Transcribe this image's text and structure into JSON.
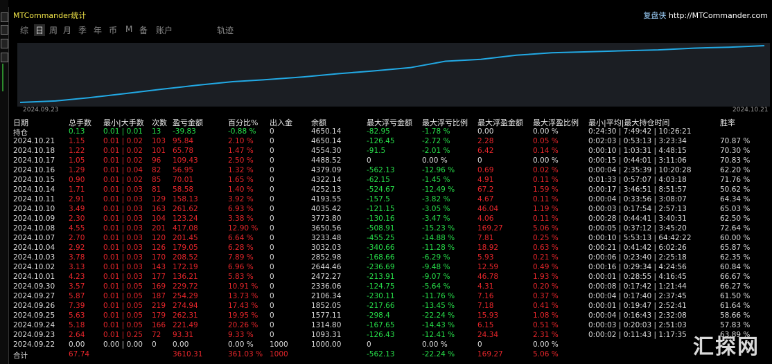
{
  "header": {
    "title": "MTCommander统计",
    "site_label": "复盘侠",
    "site_url": "http://MTCommander.com"
  },
  "tabs": [
    "综",
    "日",
    "周",
    "月",
    "季",
    "年",
    "币",
    "M",
    "备",
    "账户",
    "轨迹"
  ],
  "active_tab": 1,
  "chart": {
    "start_date": "2024.09.23",
    "end_date": "2024.10.21"
  },
  "table": {
    "columns": [
      "日期",
      "总手数",
      "最小|大手数",
      "次数",
      "盈亏金额",
      "百分比%",
      "出入金",
      "余额",
      "最大浮亏金额",
      "最大浮亏比例",
      "最大浮盈金额",
      "最大浮盈比例",
      "最小|平均|最大持仓时间",
      "胜率"
    ],
    "rows": [
      [
        "持仓",
        "0.13",
        "0.01 | 0.01",
        "13",
        "-39.83",
        "-0.88 %",
        "0",
        "4650.14",
        "-82.95",
        "-1.78 %",
        "0.00",
        "0.00 %",
        "0:24:30 | 7:49:42 | 10:26:21",
        null
      ],
      [
        "2024.10.21",
        "1.15",
        "0.01 | 0.02",
        "103",
        "95.84",
        "2.10 %",
        "0",
        "4650.14",
        "-126.45",
        "-2.72 %",
        "2.28",
        "0.05 %",
        "0:02:03 | 0:53:13 | 3:23:34",
        "70.87 %"
      ],
      [
        "2024.10.18",
        "1.22",
        "0.01 | 0.02",
        "101",
        "65.78",
        "1.47 %",
        "0",
        "4554.30",
        "-91.5",
        "-2.01 %",
        "6.42",
        "0.14 %",
        "0:00:10 | 1:03:31 | 4:48:15",
        "70.30 %"
      ],
      [
        "2024.10.17",
        "1.05",
        "0.01 | 0.02",
        "96",
        "109.43",
        "2.50 %",
        "0",
        "4488.52",
        "0",
        "0.00 %",
        "0",
        "0.00 %",
        "0:00:15 | 0:44:01 | 3:11:06",
        "70.83 %"
      ],
      [
        "2024.10.16",
        "1.29",
        "0.01 | 0.04",
        "82",
        "56.95",
        "1.32 %",
        "0",
        "4379.09",
        "-562.13",
        "-12.96 %",
        "0.69",
        "0.02 %",
        "0:00:04 | 2:35:39 | 10:20:28",
        "62.20 %"
      ],
      [
        "2024.10.15",
        "0.90",
        "0.01 | 0.02",
        "85",
        "70.01",
        "1.65 %",
        "0",
        "4322.14",
        "-62.15",
        "-1.45 %",
        "4.91",
        "0.11 %",
        "0:01:33 | 0:57:07 | 4:03:18",
        "71.76 %"
      ],
      [
        "2024.10.14",
        "1.71",
        "0.01 | 0.03",
        "81",
        "58.58",
        "1.40 %",
        "0",
        "4252.13",
        "-524.67",
        "-12.49 %",
        "67.2",
        "1.59 %",
        "0:00:17 | 3:46:51 | 8:51:57",
        "50.62 %"
      ],
      [
        "2024.10.11",
        "2.91",
        "0.01 | 0.03",
        "129",
        "158.13",
        "3.92 %",
        "0",
        "4193.55",
        "-157.5",
        "-3.82 %",
        "4.67",
        "0.11 %",
        "0:00:04 | 0:33:56 | 3:08:07",
        "64.34 %"
      ],
      [
        "2024.10.10",
        "3.49",
        "0.01 | 0.03",
        "163",
        "261.62",
        "6.93 %",
        "0",
        "4035.42",
        "-121.15",
        "-3.05 %",
        "46.04",
        "1.19 %",
        "0:00:03 | 0:17:54 | 2:57:13",
        "65.03 %"
      ],
      [
        "2024.10.09",
        "2.30",
        "0.01 | 0.03",
        "104",
        "123.24",
        "3.38 %",
        "0",
        "3773.80",
        "-130.16",
        "-3.47 %",
        "4.06",
        "0.11 %",
        "0:00:28 | 0:44:41 | 3:40:31",
        "62.50 %"
      ],
      [
        "2024.10.08",
        "4.55",
        "0.01 | 0.03",
        "201",
        "417.08",
        "12.90 %",
        "0",
        "3650.56",
        "-508.91",
        "-15.23 %",
        "169.27",
        "5.06 %",
        "0:00:05 | 0:37:12 | 3:45:20",
        "72.64 %"
      ],
      [
        "2024.10.07",
        "2.70",
        "0.01 | 0.03",
        "120",
        "201.45",
        "6.64 %",
        "0",
        "3233.48",
        "-455.25",
        "-14.88 %",
        "7.81",
        "0.25 %",
        "0:00:10 | 5:53:13 | 64:42:22",
        "60.00 %"
      ],
      [
        "2024.10.04",
        "2.92",
        "0.01 | 0.03",
        "126",
        "179.05",
        "6.28 %",
        "0",
        "3032.03",
        "-340.66",
        "-11.28 %",
        "18.92",
        "0.63 %",
        "0:00:21 | 0:41:42 | 6:02:26",
        "65.87 %"
      ],
      [
        "2024.10.03",
        "3.78",
        "0.01 | 0.03",
        "170",
        "208.52",
        "7.89 %",
        "0",
        "2852.98",
        "-168.66",
        "-6.29 %",
        "5.93",
        "0.21 %",
        "0:00:06 | 0:23:40 | 2:25:18",
        "62.35 %"
      ],
      [
        "2024.10.02",
        "3.13",
        "0.01 | 0.03",
        "143",
        "172.19",
        "6.96 %",
        "0",
        "2644.46",
        "-236.69",
        "-9.48 %",
        "12.59",
        "0.49 %",
        "0:00:16 | 0:29:34 | 4:24:56",
        "60.84 %"
      ],
      [
        "2024.10.01",
        "4.23",
        "0.01 | 0.03",
        "177",
        "136.21",
        "5.83 %",
        "0",
        "2472.27",
        "-213.91",
        "-9.07 %",
        "46.78",
        "1.93 %",
        "0:00:01 | 0:28:55 | 4:16:45",
        "66.67 %"
      ],
      [
        "2024.09.30",
        "3.57",
        "0.01 | 0.05",
        "169",
        "229.72",
        "10.91 %",
        "0",
        "2336.06",
        "-124.75",
        "-5.64 %",
        "4.31",
        "0.20 %",
        "0:00:08 | 0:17:42 | 1:21:44",
        "66.27 %"
      ],
      [
        "2024.09.27",
        "5.87",
        "0.01 | 0.05",
        "187",
        "254.29",
        "13.73 %",
        "0",
        "2106.34",
        "-230.11",
        "-11.76 %",
        "7.16",
        "0.37 %",
        "0:00:04 | 0:17:40 | 2:37:45",
        "61.50 %"
      ],
      [
        "2024.09.26",
        "7.39",
        "0.01 | 0.05",
        "219",
        "274.94",
        "17.43 %",
        "0",
        "1852.05",
        "-217.66",
        "-13.45 %",
        "7.18",
        "0.41 %",
        "0:00:01 | 0:19:47 | 2:52:41",
        "61.64 %"
      ],
      [
        "2024.09.25",
        "5.63",
        "0.01 | 0.05",
        "179",
        "262.31",
        "19.95 %",
        "0",
        "1577.11",
        "-298.4",
        "-22.24 %",
        "15.93",
        "1.08 %",
        "0:00:04 | 0:16:43 | 2:32:08",
        "58.66 %"
      ],
      [
        "2024.09.24",
        "5.18",
        "0.01 | 0.05",
        "166",
        "221.49",
        "20.26 %",
        "0",
        "1314.80",
        "-167.65",
        "-14.43 %",
        "6.15",
        "0.51 %",
        "0:00:03 | 0:20:03 | 2:51:03",
        "57.83 %"
      ],
      [
        "2024.09.23",
        "2.64",
        "0.01 | 0.25",
        "72",
        "93.31",
        "9.33 %",
        "0",
        "1093.31",
        "-126.43",
        "-12.41 %",
        "24.34",
        "2.31 %",
        "0:00:02 | 0:11:43 | 1:17:35",
        "63.89 %"
      ],
      [
        "2024.09.22",
        "0.00",
        "0.00 | 0.00",
        "0",
        "0.00",
        "0.00 %",
        "1000",
        "1000.00",
        "0",
        "0.00 %",
        "0",
        "0.00 %",
        null,
        null
      ],
      [
        "合计",
        "67.74",
        null,
        null,
        "3610.31",
        "361.03 %",
        "1000",
        null,
        "-562.13",
        "-22.24 %",
        "169.27",
        "5.06 %",
        null,
        null
      ]
    ]
  },
  "watermark": "汇探网"
}
